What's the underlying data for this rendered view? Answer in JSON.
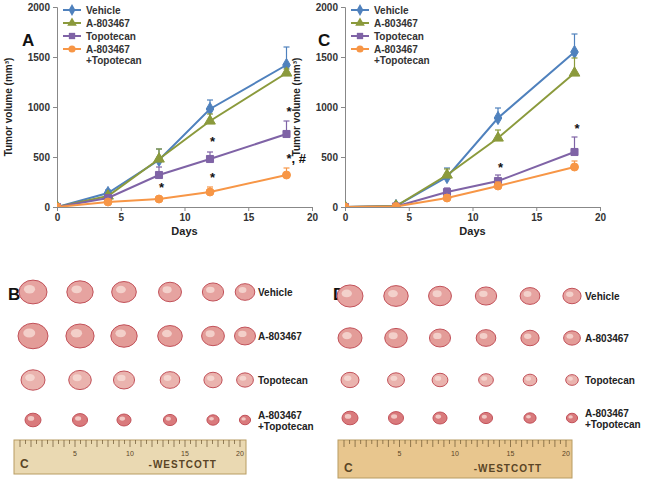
{
  "chart_data": [
    {
      "type": "line",
      "panel": "A",
      "x_label": "Days",
      "y_label": "Tumor volume (mm³)",
      "x": [
        0,
        4,
        8,
        12,
        18
      ],
      "xlim": [
        0,
        20
      ],
      "xticks": [
        0,
        5,
        10,
        15,
        20
      ],
      "ylim": [
        0,
        2000
      ],
      "yticks": [
        0,
        500,
        1000,
        1500,
        2000
      ],
      "grid": false,
      "legend": "upper left",
      "series": [
        {
          "name": "Vehicle",
          "color": "#4f81bd",
          "marker": "diamond",
          "values": [
            0,
            140,
            470,
            980,
            1420
          ],
          "errors": [
            0,
            30,
            110,
            90,
            180
          ]
        },
        {
          "name": "A-803467",
          "color": "#8b9a3c",
          "marker": "triangle",
          "values": [
            0,
            110,
            480,
            860,
            1340
          ],
          "errors": [
            0,
            20,
            100,
            70,
            40
          ]
        },
        {
          "name": "Topotecan",
          "color": "#7f63a6",
          "marker": "square",
          "values": [
            0,
            90,
            320,
            480,
            730
          ],
          "errors": [
            0,
            20,
            80,
            70,
            130
          ]
        },
        {
          "name": "A-803467 +Topotecan",
          "color": "#f79646",
          "marker": "circle",
          "values": [
            0,
            50,
            80,
            150,
            320
          ],
          "errors": [
            0,
            10,
            15,
            50,
            70
          ]
        }
      ],
      "annotations": [
        {
          "text": "*",
          "x": 8,
          "y": 150
        },
        {
          "text": "*",
          "x": 12,
          "y": 610
        },
        {
          "text": "*",
          "x": 12,
          "y": 250
        },
        {
          "text": "*",
          "x": 18,
          "y": 910
        },
        {
          "text": "*, #",
          "x": 18,
          "y": 440
        }
      ]
    },
    {
      "type": "line",
      "panel": "C",
      "x_label": "Days",
      "y_label": "Tumor volume (mm³)",
      "x": [
        0,
        4,
        8,
        12,
        18
      ],
      "xlim": [
        0,
        20
      ],
      "xticks": [
        0,
        5,
        10,
        15,
        20
      ],
      "ylim": [
        0,
        2000
      ],
      "yticks": [
        0,
        500,
        1000,
        1500,
        2000
      ],
      "grid": false,
      "legend": "upper left",
      "series": [
        {
          "name": "Vehicle",
          "color": "#4f81bd",
          "marker": "diamond",
          "values": [
            0,
            10,
            300,
            890,
            1550
          ],
          "errors": [
            0,
            5,
            90,
            100,
            180
          ]
        },
        {
          "name": "A-803467",
          "color": "#8b9a3c",
          "marker": "triangle",
          "values": [
            0,
            10,
            320,
            690,
            1340
          ],
          "errors": [
            0,
            5,
            60,
            80,
            150
          ]
        },
        {
          "name": "Topotecan",
          "color": "#7f63a6",
          "marker": "square",
          "values": [
            0,
            5,
            150,
            260,
            550
          ],
          "errors": [
            0,
            5,
            40,
            60,
            150
          ]
        },
        {
          "name": "A-803467 +Topotecan",
          "color": "#f79646",
          "marker": "circle",
          "values": [
            0,
            5,
            90,
            210,
            400
          ],
          "errors": [
            0,
            5,
            30,
            40,
            60
          ]
        }
      ],
      "annotations": [
        {
          "text": "*",
          "x": 12,
          "y": 350
        },
        {
          "text": "*",
          "x": 18,
          "y": 740
        }
      ]
    }
  ],
  "photo_panels": [
    {
      "panel": "B",
      "rows": [
        "Vehicle",
        "A-803467",
        "Topotecan",
        "A-803467 +Topotecan"
      ],
      "ruler": {
        "logo": "C",
        "numbers": [
          5,
          10,
          15,
          20
        ],
        "brand": "-WESTCOTT"
      }
    },
    {
      "panel": "D",
      "rows": [
        "Vehicle",
        "A-803467",
        "Topotecan",
        "A-803467 +Topotecan"
      ],
      "ruler": {
        "logo": "C",
        "numbers": [
          5,
          10,
          15,
          20
        ],
        "brand": "-WESTCOTT"
      }
    }
  ]
}
